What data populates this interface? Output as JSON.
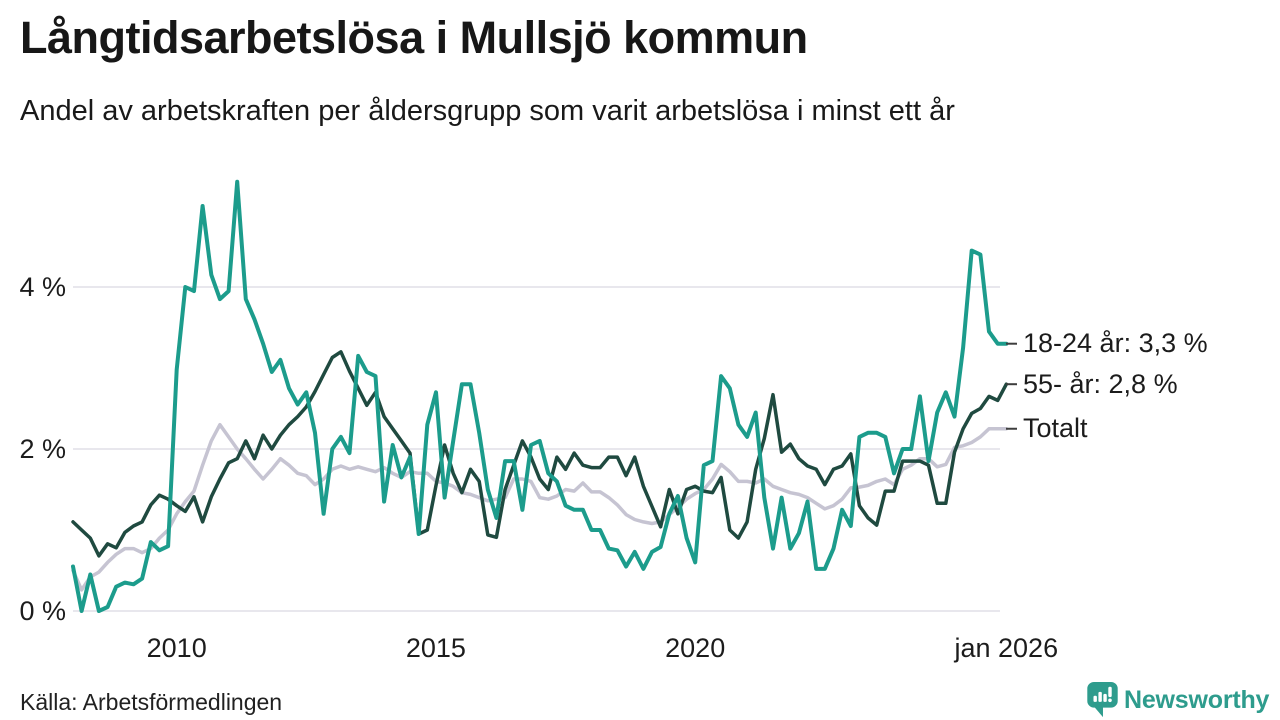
{
  "header": {
    "title": "Långtidsarbetslösa i Mullsjö kommun",
    "subtitle": "Andel av arbetskraften per åldersgrupp som varit arbetslösa i minst ett år"
  },
  "footer": {
    "source": "Källa: Arbetsförmedlingen",
    "brand_name": "Newsworthy",
    "brand_color": "#2e9c8d",
    "brand_icon": "speech-bubble-bar-chart-icon"
  },
  "chart_data": {
    "type": "line",
    "unit": "%",
    "x_start": "2008-01",
    "x_step_months": 2,
    "x_end": "2026-01",
    "grid": true,
    "legend_position": "right-end-labels",
    "style": {
      "grid_color": "#e8e7ed",
      "end_tick_color": "#3d3d3d",
      "text_color": "#1c1c1c"
    },
    "y_axis": {
      "min": 0,
      "max": 5.6,
      "ticks": [
        {
          "value": 0,
          "label": "0 %"
        },
        {
          "value": 2,
          "label": "2 %"
        },
        {
          "value": 4,
          "label": "4 %"
        }
      ]
    },
    "x_axis": {
      "ticks": [
        {
          "year": 2010,
          "label": "2010"
        },
        {
          "year": 2015,
          "label": "2015"
        },
        {
          "year": 2020,
          "label": "2020"
        },
        {
          "year": 2026,
          "label": "jan 2026"
        }
      ]
    },
    "series": [
      {
        "name": "18-24 år",
        "slug": "18-24-ar",
        "color": "#1c9c8c",
        "stroke_width": 4,
        "end_label": "18-24 år: 3,3 %",
        "end_value": 3.3,
        "values": [
          0.55,
          0,
          0.45,
          0,
          0.05,
          0.3,
          0.35,
          0.33,
          0.4,
          0.85,
          0.75,
          0.8,
          2.98,
          4.0,
          3.95,
          5.0,
          4.15,
          3.85,
          3.95,
          5.3,
          3.85,
          3.6,
          3.3,
          2.95,
          3.1,
          2.75,
          2.55,
          2.7,
          2.2,
          1.2,
          2.0,
          2.15,
          1.95,
          3.15,
          2.95,
          2.9,
          1.35,
          2.05,
          1.65,
          1.9,
          0.95,
          2.3,
          2.7,
          1.4,
          2.1,
          2.8,
          2.8,
          2.2,
          1.5,
          1.15,
          1.85,
          1.85,
          1.25,
          2.05,
          2.1,
          1.7,
          1.6,
          1.3,
          1.25,
          1.25,
          1.0,
          1.0,
          0.77,
          0.75,
          0.55,
          0.73,
          0.52,
          0.73,
          0.79,
          1.2,
          1.42,
          0.9,
          0.6,
          1.8,
          1.85,
          2.9,
          2.75,
          2.3,
          2.15,
          2.45,
          1.4,
          0.77,
          1.4,
          0.77,
          0.96,
          1.35,
          0.52,
          0.52,
          0.77,
          1.25,
          1.05,
          2.15,
          2.2,
          2.2,
          2.15,
          1.7,
          2.0,
          2.0,
          2.65,
          1.85,
          2.45,
          2.7,
          2.4,
          3.25,
          4.45,
          4.4,
          3.45,
          3.3,
          3.3
        ]
      },
      {
        "name": "55- år",
        "slug": "55-ar",
        "color": "#1f4a40",
        "stroke_width": 3.5,
        "end_label": "55- år: 2,8 %",
        "end_value": 2.8,
        "values": [
          1.1,
          1.0,
          0.9,
          0.68,
          0.83,
          0.78,
          0.97,
          1.05,
          1.1,
          1.31,
          1.43,
          1.38,
          1.3,
          1.23,
          1.41,
          1.1,
          1.41,
          1.63,
          1.83,
          1.88,
          2.1,
          1.88,
          2.17,
          2.0,
          2.17,
          2.3,
          2.4,
          2.52,
          2.71,
          2.92,
          3.13,
          3.2,
          2.96,
          2.75,
          2.54,
          2.7,
          2.4,
          2.25,
          2.1,
          1.95,
          0.95,
          1.0,
          1.55,
          2.05,
          1.7,
          1.46,
          1.75,
          1.6,
          0.94,
          0.91,
          1.5,
          1.8,
          2.1,
          1.9,
          1.63,
          1.5,
          1.9,
          1.75,
          1.95,
          1.8,
          1.77,
          1.77,
          1.9,
          1.9,
          1.67,
          1.9,
          1.54,
          1.29,
          1.04,
          1.5,
          1.2,
          1.5,
          1.54,
          1.48,
          1.46,
          1.65,
          1.0,
          0.9,
          1.1,
          1.75,
          2.13,
          2.67,
          1.96,
          2.06,
          1.88,
          1.79,
          1.75,
          1.56,
          1.75,
          1.79,
          1.94,
          1.3,
          1.15,
          1.06,
          1.48,
          1.48,
          1.85,
          1.85,
          1.85,
          1.8,
          1.33,
          1.33,
          1.96,
          2.25,
          2.44,
          2.5,
          2.65,
          2.6,
          2.8
        ]
      },
      {
        "name": "Totalt",
        "slug": "totalt",
        "color": "#c6c4d2",
        "stroke_width": 3.5,
        "end_label": "Totalt",
        "end_value": 2.25,
        "values": [
          0.5,
          0.26,
          0.42,
          0.48,
          0.6,
          0.7,
          0.77,
          0.77,
          0.72,
          0.77,
          0.9,
          1.0,
          1.2,
          1.35,
          1.48,
          1.8,
          2.1,
          2.3,
          2.15,
          2.0,
          1.88,
          1.75,
          1.63,
          1.75,
          1.88,
          1.8,
          1.7,
          1.67,
          1.56,
          1.63,
          1.75,
          1.79,
          1.75,
          1.78,
          1.75,
          1.72,
          1.77,
          1.7,
          1.65,
          1.72,
          1.7,
          1.7,
          1.6,
          1.58,
          1.54,
          1.46,
          1.44,
          1.4,
          1.36,
          1.38,
          1.4,
          1.63,
          1.63,
          1.6,
          1.4,
          1.38,
          1.42,
          1.5,
          1.48,
          1.58,
          1.47,
          1.47,
          1.4,
          1.31,
          1.19,
          1.13,
          1.1,
          1.08,
          1.1,
          1.19,
          1.28,
          1.38,
          1.45,
          1.5,
          1.63,
          1.81,
          1.72,
          1.6,
          1.6,
          1.58,
          1.63,
          1.54,
          1.5,
          1.46,
          1.44,
          1.4,
          1.33,
          1.26,
          1.3,
          1.38,
          1.52,
          1.53,
          1.55,
          1.6,
          1.63,
          1.56,
          1.75,
          1.8,
          1.88,
          1.88,
          1.78,
          1.81,
          2.02,
          2.04,
          2.08,
          2.15,
          2.25,
          2.25,
          2.25
        ]
      }
    ]
  }
}
